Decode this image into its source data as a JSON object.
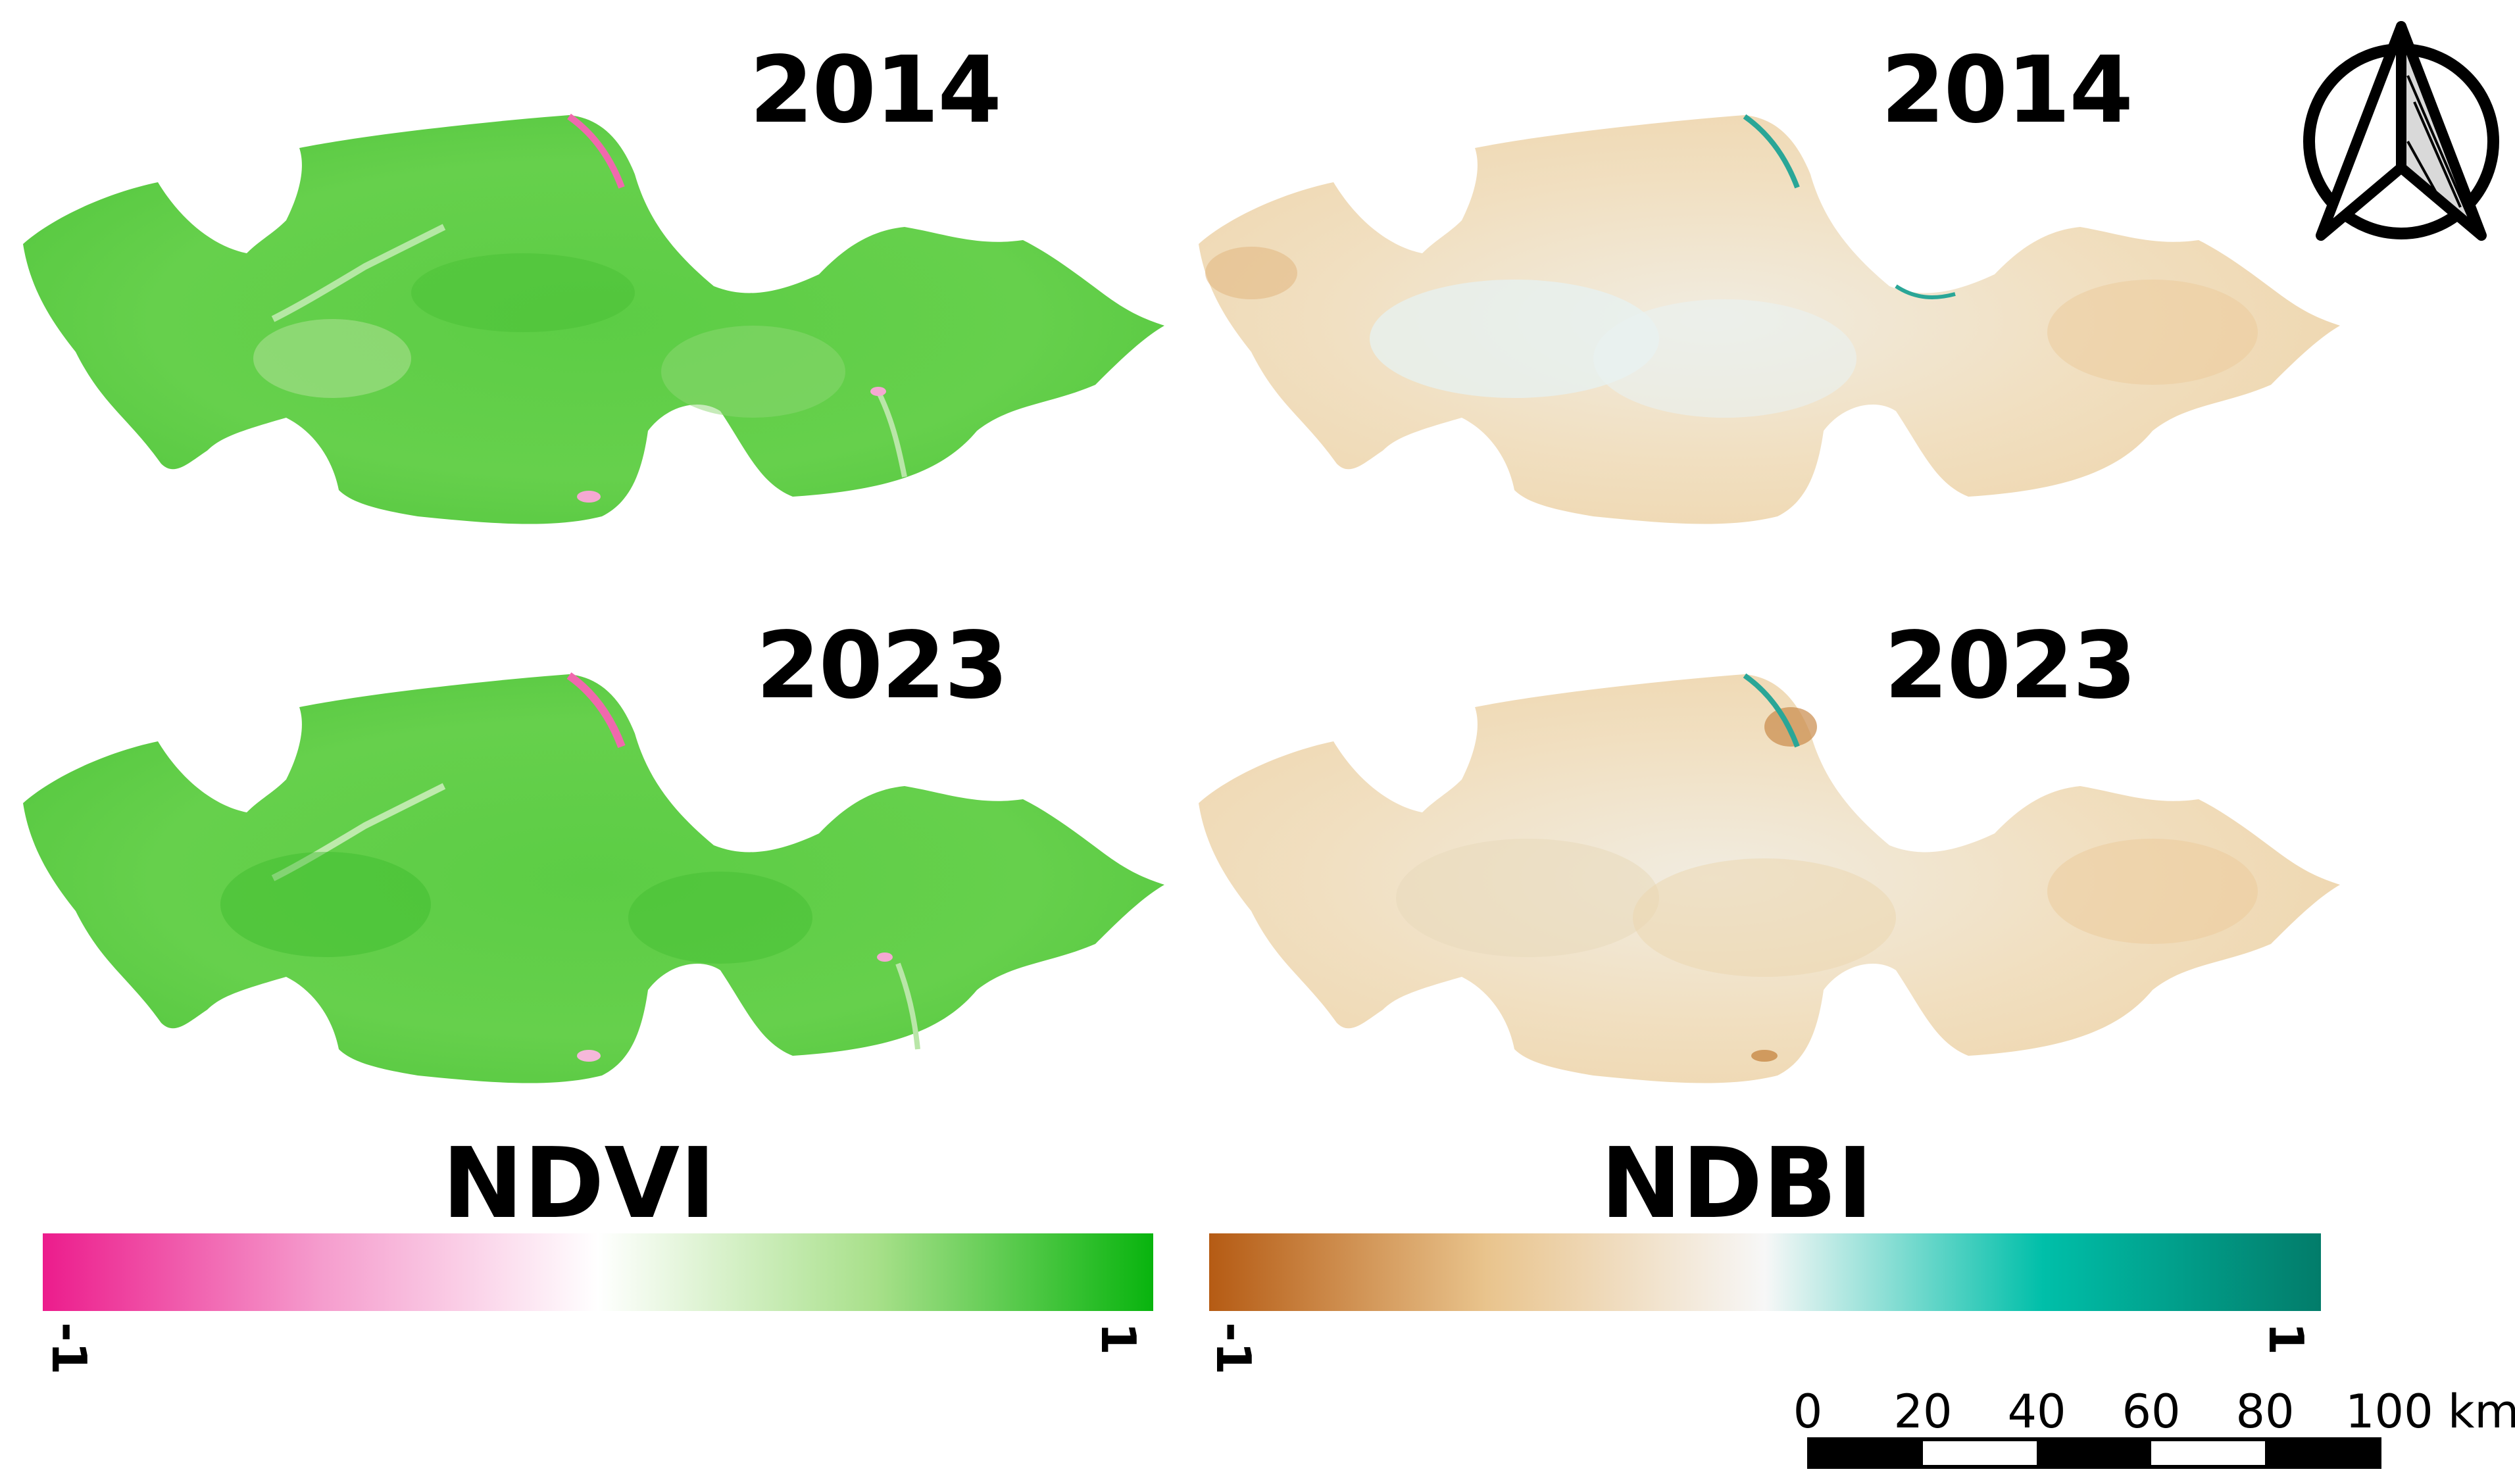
{
  "panels": [
    {
      "index": "NDVI",
      "year": "2014"
    },
    {
      "index": "NDBI",
      "year": "2014"
    },
    {
      "index": "NDVI",
      "year": "2023"
    },
    {
      "index": "NDBI",
      "year": "2023"
    }
  ],
  "legends": {
    "ndvi": {
      "title": "NDVI",
      "min_label": "-1",
      "max_label": "1",
      "colors": [
        "#ec1c8c",
        "#f59ccd",
        "#ffffff",
        "#a8e08a",
        "#08b40e"
      ]
    },
    "ndbi": {
      "title": "NDBI",
      "min_label": "-1",
      "max_label": "1",
      "colors": [
        "#b55b14",
        "#e9c48d",
        "#f7f7f7",
        "#00bfa9",
        "#027c6a"
      ]
    }
  },
  "scale_bar": {
    "labels": [
      "0",
      "20",
      "40",
      "60",
      "80",
      "100 km"
    ]
  },
  "north_arrow": {
    "icon": "north-arrow-icon"
  }
}
